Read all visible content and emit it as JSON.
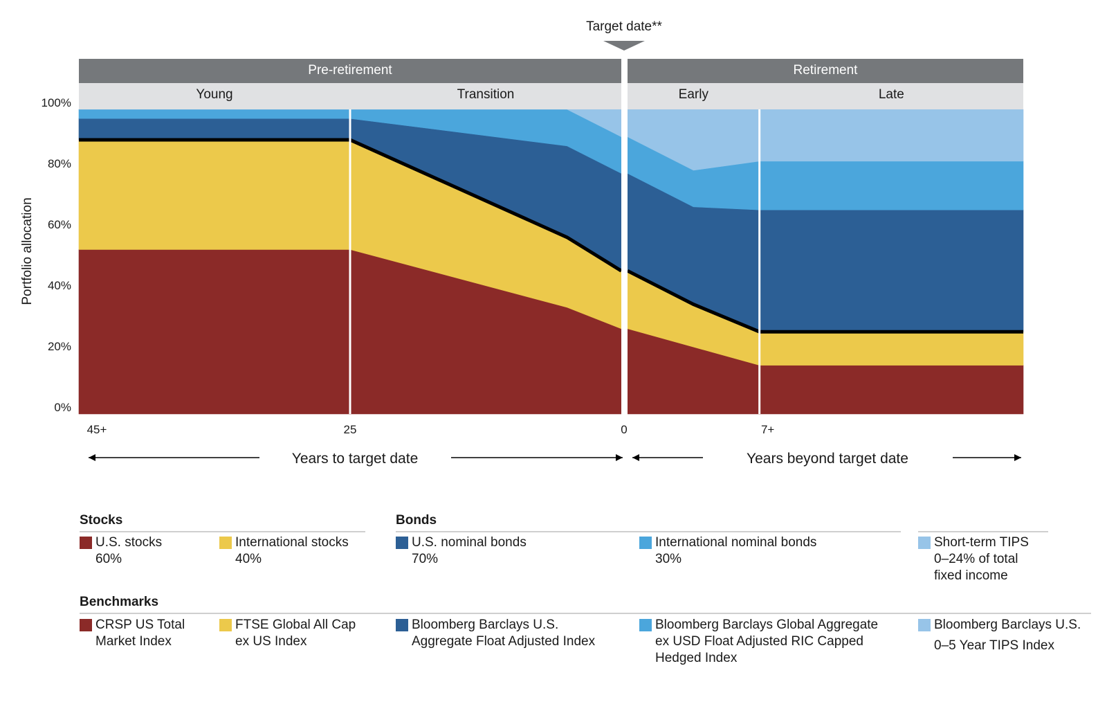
{
  "chart_data": {
    "type": "area",
    "target_label": "Target date**",
    "phases": [
      {
        "label": "Pre-retirement",
        "x_start": 0,
        "x_end": 4
      },
      {
        "label": "Retirement",
        "x_start": 4,
        "x_end": 7
      }
    ],
    "stages": [
      {
        "label": "Young",
        "x_start": 0,
        "x_end": 2
      },
      {
        "label": "Transition",
        "x_start": 2,
        "x_end": 4
      },
      {
        "label": "Early",
        "x_start": 4,
        "x_end": 5
      },
      {
        "label": "Late",
        "x_start": 5,
        "x_end": 7
      }
    ],
    "x": [
      0,
      2,
      3.6,
      4,
      4.5,
      5,
      7
    ],
    "xticks": [
      {
        "pos": 0,
        "label": "45+"
      },
      {
        "pos": 2,
        "label": "25"
      },
      {
        "pos": 4,
        "label": "0"
      },
      {
        "pos": 5,
        "label": "7+"
      }
    ],
    "ylabel": "Portfolio allocation",
    "ylim": [
      0,
      100
    ],
    "yticks": [
      "0%",
      "20%",
      "40%",
      "60%",
      "80%",
      "100%"
    ],
    "series": [
      {
        "name": "U.S. stocks",
        "color": "#8b2a28",
        "values": [
          54,
          54,
          35,
          28,
          22,
          16,
          16
        ]
      },
      {
        "name": "International stocks",
        "color": "#ecc94b",
        "values": [
          36,
          36,
          23,
          19,
          14,
          11,
          11
        ]
      },
      {
        "name": "U.S. nominal bonds",
        "color": "#2c5f95",
        "values": [
          7,
          7,
          30,
          32,
          32,
          40,
          40
        ]
      },
      {
        "name": "International nominal bonds",
        "color": "#4ba6dc",
        "values": [
          3,
          3,
          12,
          12,
          12,
          16,
          16
        ]
      },
      {
        "name": "Short-term TIPS",
        "color": "#97c4e8",
        "values": [
          0,
          0,
          0,
          9,
          20,
          17,
          17
        ]
      }
    ],
    "x_axis_labels": {
      "left": "Years to target date",
      "right": "Years beyond target date"
    }
  },
  "legend": {
    "stocks_title": "Stocks",
    "bonds_title": "Bonds",
    "benchmarks_title": "Benchmarks",
    "items": [
      {
        "color": "#8b2a28",
        "lines": [
          "U.S. stocks",
          "60%"
        ]
      },
      {
        "color": "#ecc94b",
        "lines": [
          "International stocks",
          "40%"
        ]
      },
      {
        "color": "#2c5f95",
        "lines": [
          "U.S. nominal bonds",
          "70%"
        ]
      },
      {
        "color": "#4ba6dc",
        "lines": [
          "International nominal bonds",
          "30%"
        ]
      },
      {
        "color": "#97c4e8",
        "lines": [
          "Short-term TIPS",
          "0–24% of total",
          "fixed income"
        ]
      }
    ],
    "benchmarks": [
      {
        "color": "#8b2a28",
        "lines": [
          "CRSP US Total",
          "Market Index"
        ]
      },
      {
        "color": "#ecc94b",
        "lines": [
          "FTSE Global All Cap",
          "ex US Index"
        ]
      },
      {
        "color": "#2c5f95",
        "lines": [
          "Bloomberg Barclays U.S.",
          "Aggregate Float Adjusted Index"
        ]
      },
      {
        "color": "#4ba6dc",
        "lines": [
          "Bloomberg Barclays Global Aggregate",
          "ex USD Float Adjusted RIC Capped",
          "Hedged Index"
        ]
      },
      {
        "color": "#97c4e8",
        "lines": [
          "Bloomberg Barclays U.S.",
          "0–5 Year TIPS Index"
        ]
      }
    ]
  }
}
